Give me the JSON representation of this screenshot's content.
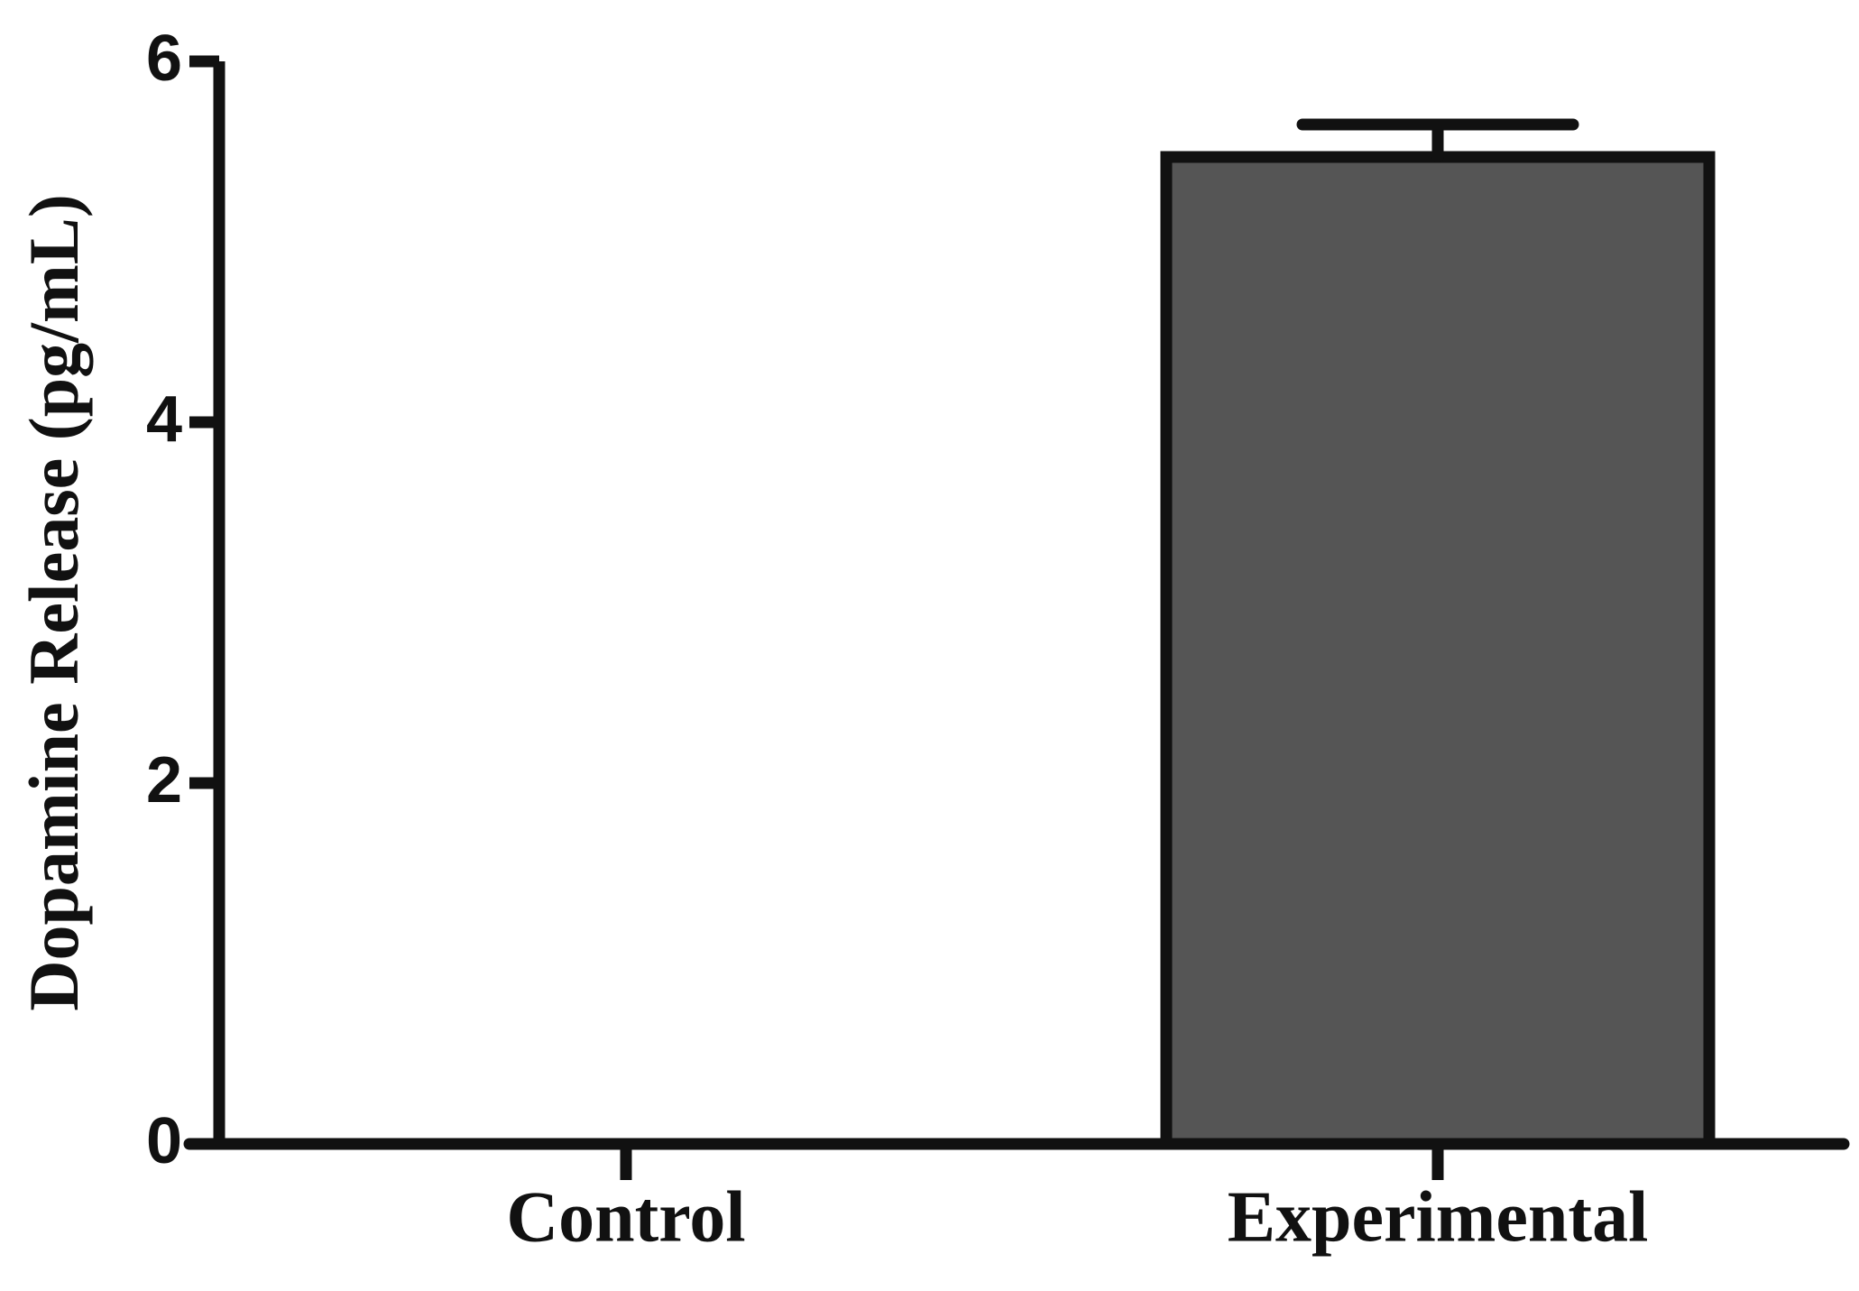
{
  "chart_data": {
    "type": "bar",
    "y_label": "Dopamine Release (pg/mL)",
    "categories": [
      "Control",
      "Experimental"
    ],
    "values": [
      0,
      5.47
    ],
    "errors": [
      null,
      0.18
    ],
    "color": "#555555",
    "ylim": [
      0,
      6
    ],
    "yticks": [
      0,
      2,
      4,
      6
    ],
    "grid": false
  }
}
